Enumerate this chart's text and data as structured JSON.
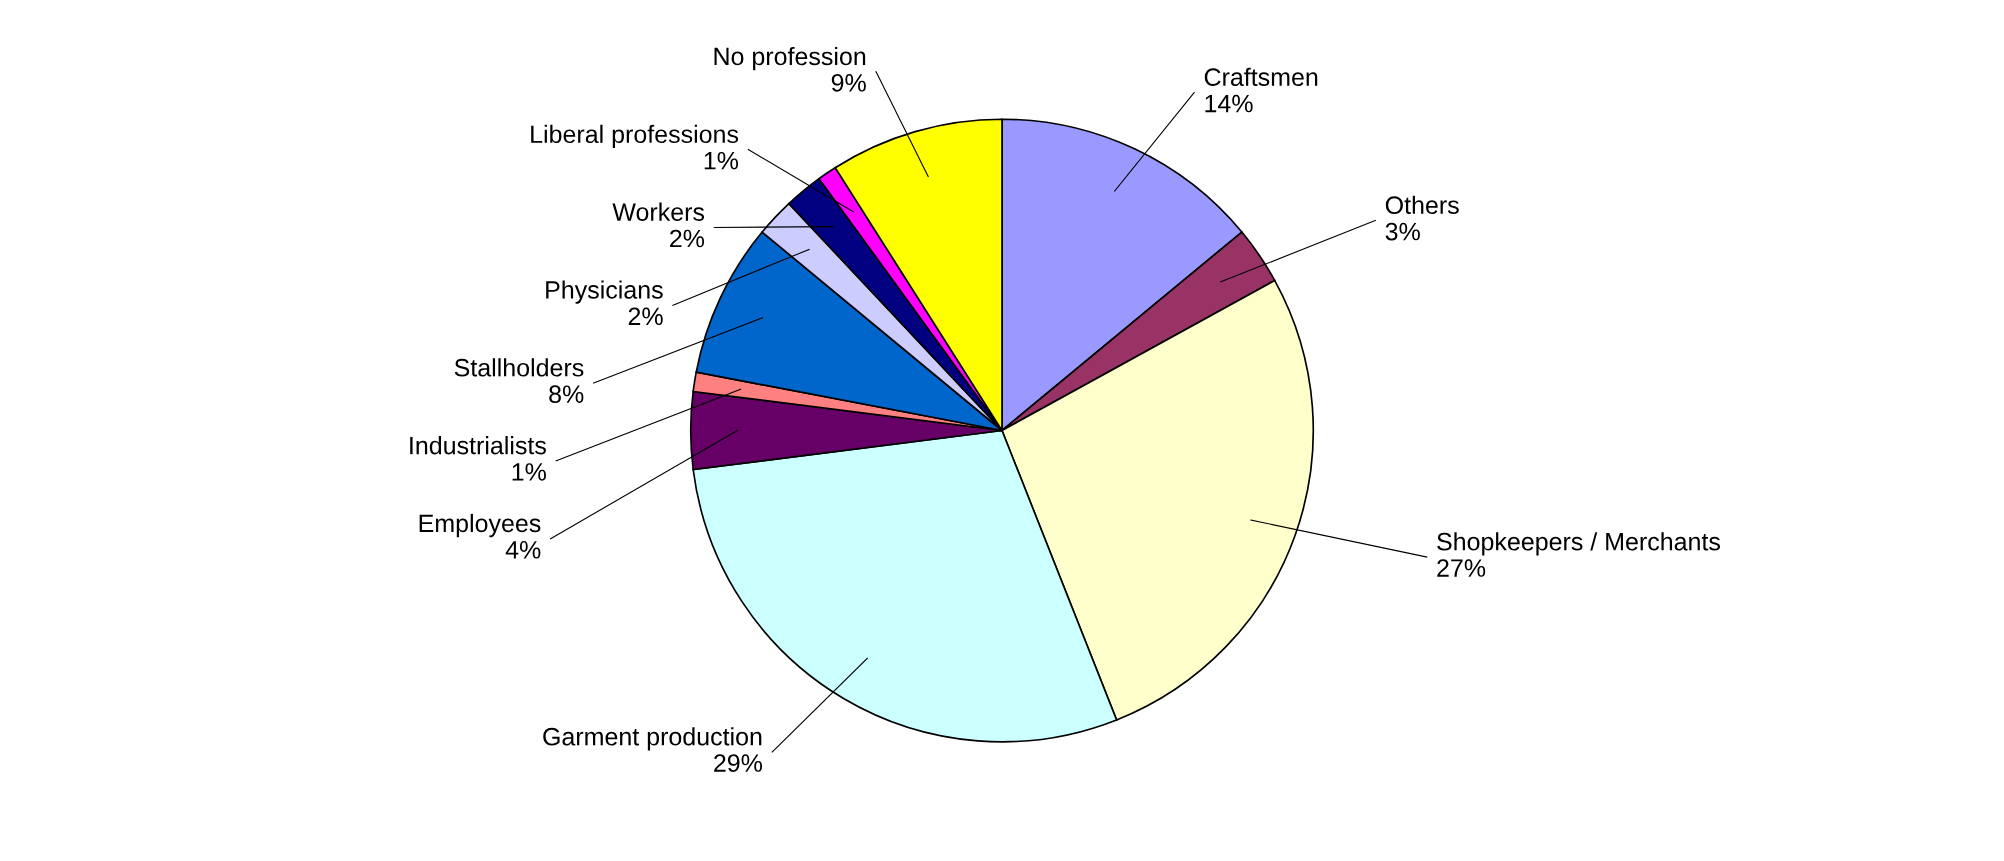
{
  "chart_data": {
    "type": "pie",
    "categories": [
      "Craftsmen",
      "Others",
      "Shopkeepers / Merchants",
      "Garment production",
      "Employees",
      "Industrialists",
      "Stallholders",
      "Physicians",
      "Workers",
      "Liberal professions",
      "No profession"
    ],
    "values": [
      14,
      3,
      27,
      29,
      4,
      1,
      8,
      2,
      2,
      1,
      9
    ],
    "value_labels": [
      "14%",
      "3%",
      "27%",
      "29%",
      "4%",
      "1%",
      "8%",
      "2%",
      "2%",
      "1%",
      "9%"
    ],
    "colors": [
      "#9999ff",
      "#993366",
      "#ffffcc",
      "#ccffff",
      "#660066",
      "#ff8080",
      "#0066cc",
      "#ccccff",
      "#000080",
      "#ff00ff",
      "#ffff00"
    ]
  }
}
